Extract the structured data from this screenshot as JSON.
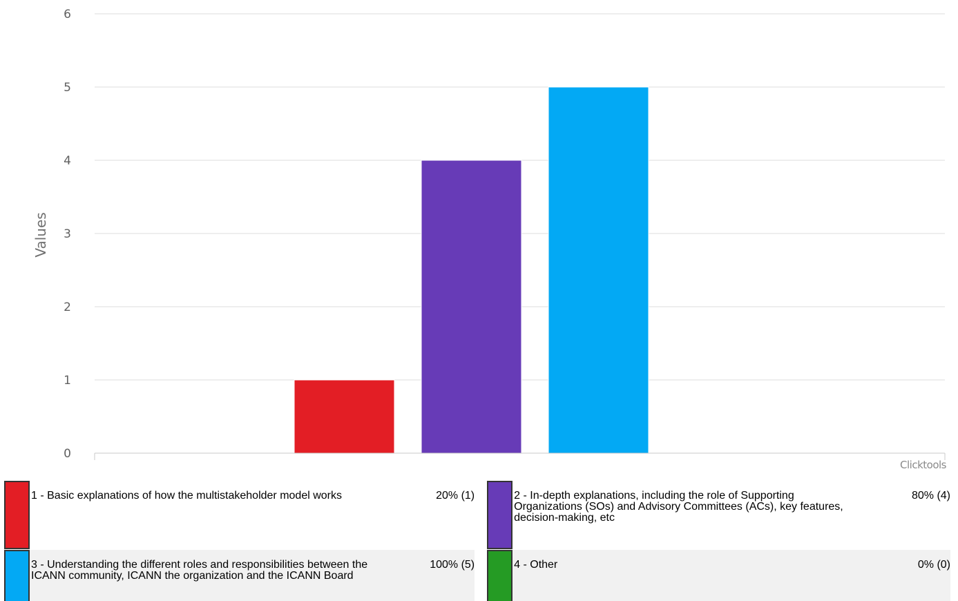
{
  "chart_data": {
    "type": "bar",
    "ylabel": "Values",
    "ylim": [
      0,
      6
    ],
    "yticks": [
      0,
      1,
      2,
      3,
      4,
      5,
      6
    ],
    "grid": true,
    "credit": "Clicktools",
    "series": [
      {
        "name": "1",
        "value": 1,
        "color": "#e31e25"
      },
      {
        "name": "2",
        "value": 4,
        "color": "#673bb7"
      },
      {
        "name": "3",
        "value": 5,
        "color": "#03a9f4"
      },
      {
        "name": "4",
        "value": 0,
        "color": "#259b24"
      }
    ]
  },
  "legend": [
    {
      "label": "1 - Basic explanations of how the multistakeholder model works",
      "pct": "20% (1)",
      "color": "#e31e25"
    },
    {
      "label": "2 - In-depth explanations, including the role of Supporting Organizations (SOs) and Advisory Committees (ACs), key features, decision-making, etc",
      "pct": "80% (4)",
      "color": "#673bb7"
    },
    {
      "label": "3 - Understanding the different roles and responsibilities between the ICANN community, ICANN the organization and the ICANN Board",
      "pct": "100% (5)",
      "color": "#03a9f4"
    },
    {
      "label": "4 - Other",
      "pct": "0% (0)",
      "color": "#259b24"
    }
  ]
}
